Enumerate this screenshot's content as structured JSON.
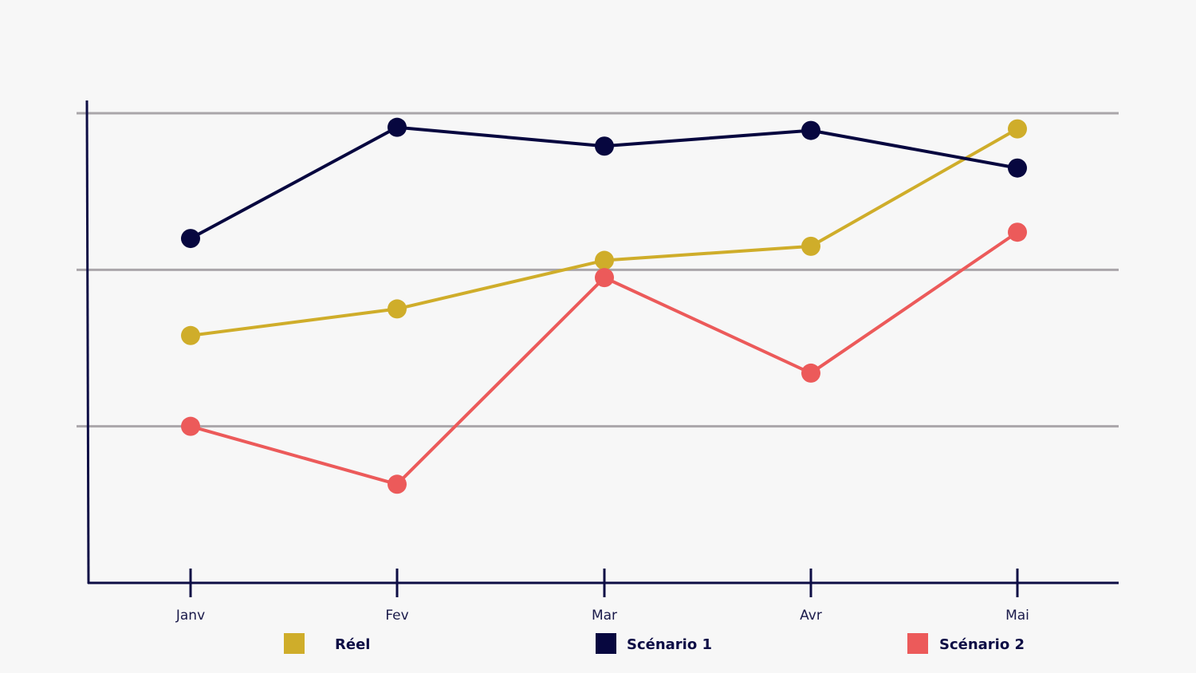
{
  "chart_data": {
    "type": "line",
    "title": "",
    "xlabel": "",
    "ylabel": "",
    "categories": [
      "Janv",
      "Fev",
      "Mar",
      "Avr",
      "Mai"
    ],
    "ylim": [
      0,
      3
    ],
    "grid": true,
    "legend_position": "bottom",
    "series": [
      {
        "name": "Réel",
        "color": "#cfad2a",
        "values": [
          1.58,
          1.75,
          2.06,
          2.15,
          2.9
        ]
      },
      {
        "name": "Scénario 1",
        "color": "#07073f",
        "values": [
          2.2,
          2.91,
          2.79,
          2.89,
          2.65
        ]
      },
      {
        "name": "Scénario 2",
        "color": "#ec5a5a",
        "values": [
          1.0,
          0.63,
          1.95,
          1.34,
          2.24
        ]
      }
    ],
    "colors": {
      "background": "#f7f7f7",
      "axis": "#0d0d45",
      "grid": "#aaa6aa"
    }
  }
}
